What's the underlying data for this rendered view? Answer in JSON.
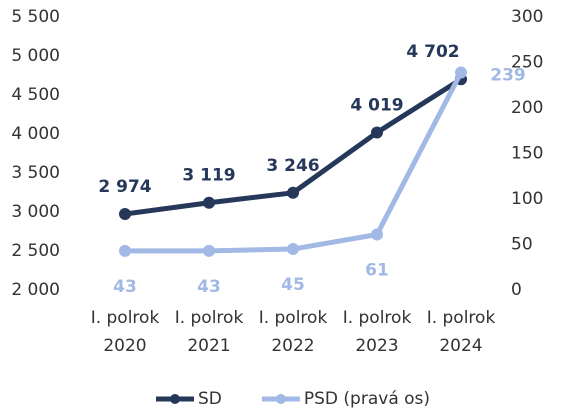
{
  "chart_data": {
    "type": "line",
    "categories": [
      "I. polrok 2020",
      "I. polrok 2021",
      "I. polrok 2022",
      "I. polrok 2023",
      "I. polrok 2024"
    ],
    "series": [
      {
        "name": "SD",
        "color": "#263859",
        "values": [
          2974,
          3119,
          3246,
          4019,
          4702
        ],
        "value_labels": [
          "2 974",
          "3 119",
          "3 246",
          "4 019",
          "4 702"
        ]
      },
      {
        "name": "PSD (pravá os)",
        "color": "#a2b9e6",
        "axis": "y2",
        "values": [
          43,
          43,
          45,
          61,
          239
        ]
      }
    ],
    "ylim": [
      2000,
      5500
    ],
    "yticks": [
      {
        "value": 2000,
        "label": "2 000"
      },
      {
        "value": 2500,
        "label": "2 500"
      },
      {
        "value": 3000,
        "label": "3 000"
      },
      {
        "value": 3500,
        "label": "3 500"
      },
      {
        "value": 4000,
        "label": "4 000"
      },
      {
        "value": 4500,
        "label": "4 500"
      },
      {
        "value": 5000,
        "label": "5 000"
      },
      {
        "value": 5500,
        "label": "5 500"
      }
    ],
    "y2lim": [
      0,
      300
    ],
    "y2ticks": [
      0,
      50,
      100,
      150,
      200,
      250,
      300
    ],
    "grid": false,
    "legend": "bottom"
  }
}
